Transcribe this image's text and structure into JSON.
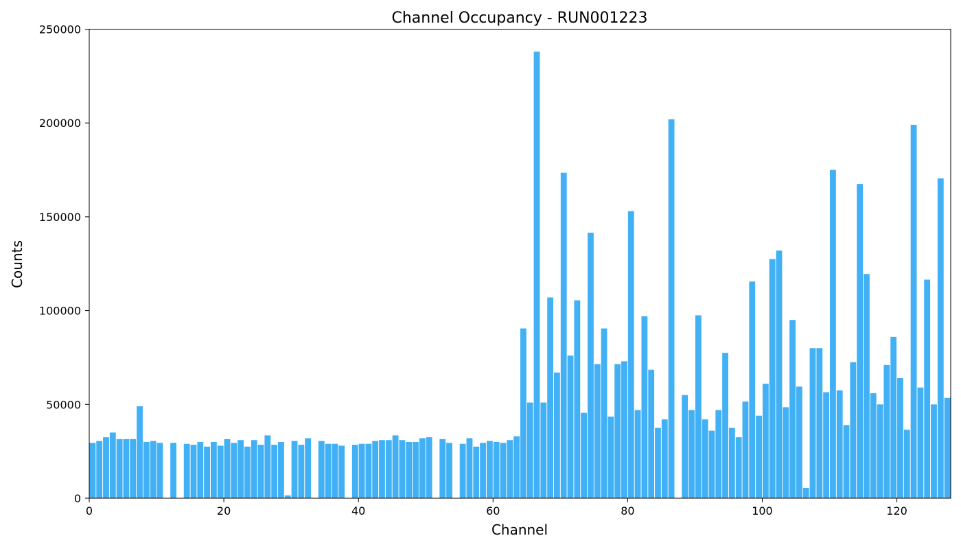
{
  "chart_data": {
    "type": "bar",
    "title": "Channel Occupancy - RUN001223",
    "xlabel": "Channel",
    "ylabel": "Counts",
    "xlim": [
      0,
      128
    ],
    "ylim": [
      0,
      250000
    ],
    "xticks": [
      0,
      20,
      40,
      60,
      80,
      100,
      120
    ],
    "yticks": [
      0,
      50000,
      100000,
      150000,
      200000,
      250000
    ],
    "bar_color": "#42b0f5",
    "grid": false,
    "x": [
      0,
      1,
      2,
      3,
      4,
      5,
      6,
      7,
      8,
      9,
      10,
      11,
      12,
      13,
      14,
      15,
      16,
      17,
      18,
      19,
      20,
      21,
      22,
      23,
      24,
      25,
      26,
      27,
      28,
      29,
      30,
      31,
      32,
      33,
      34,
      35,
      36,
      37,
      38,
      39,
      40,
      41,
      42,
      43,
      44,
      45,
      46,
      47,
      48,
      49,
      50,
      51,
      52,
      53,
      54,
      55,
      56,
      57,
      58,
      59,
      60,
      61,
      62,
      63,
      64,
      65,
      66,
      67,
      68,
      69,
      70,
      71,
      72,
      73,
      74,
      75,
      76,
      77,
      78,
      79,
      80,
      81,
      82,
      83,
      84,
      85,
      86,
      87,
      88,
      89,
      90,
      91,
      92,
      93,
      94,
      95,
      96,
      97,
      98,
      99,
      100,
      101,
      102,
      103,
      104,
      105,
      106,
      107,
      108,
      109,
      110,
      111,
      112,
      113,
      114,
      115,
      116,
      117,
      118,
      119,
      120,
      121,
      122,
      123,
      124,
      125,
      126,
      127
    ],
    "values": [
      29500,
      30500,
      32500,
      35000,
      31500,
      31500,
      31500,
      49000,
      30000,
      30500,
      29500,
      0,
      29500,
      0,
      29000,
      28500,
      30000,
      27500,
      30000,
      28000,
      31500,
      29500,
      31000,
      27500,
      31000,
      28500,
      33500,
      28500,
      30000,
      1500,
      30500,
      28500,
      32000,
      0,
      30500,
      29000,
      29000,
      28000,
      0,
      28500,
      29000,
      29000,
      30500,
      31000,
      31000,
      33500,
      31000,
      30000,
      30000,
      32000,
      32500,
      0,
      31500,
      29500,
      0,
      29000,
      32000,
      27500,
      29500,
      30500,
      30000,
      29500,
      31000,
      33000,
      90500,
      51000,
      238000,
      51000,
      107000,
      67000,
      173500,
      76000,
      105500,
      45500,
      141500,
      71500,
      90500,
      43500,
      71500,
      73000,
      153000,
      47000,
      97000,
      68500,
      37500,
      42000,
      202000,
      0,
      55000,
      47000,
      97500,
      42000,
      36000,
      47000,
      77500,
      37500,
      32500,
      51500,
      115500,
      44000,
      61000,
      127500,
      132000,
      48500,
      95000,
      59500,
      5500,
      80000,
      80000,
      56500,
      175000,
      57500,
      39000,
      72500,
      167500,
      119500,
      56000,
      50000,
      71000,
      86000,
      64000,
      36500,
      199000,
      59000,
      116500,
      50000,
      170500,
      53500
    ]
  }
}
